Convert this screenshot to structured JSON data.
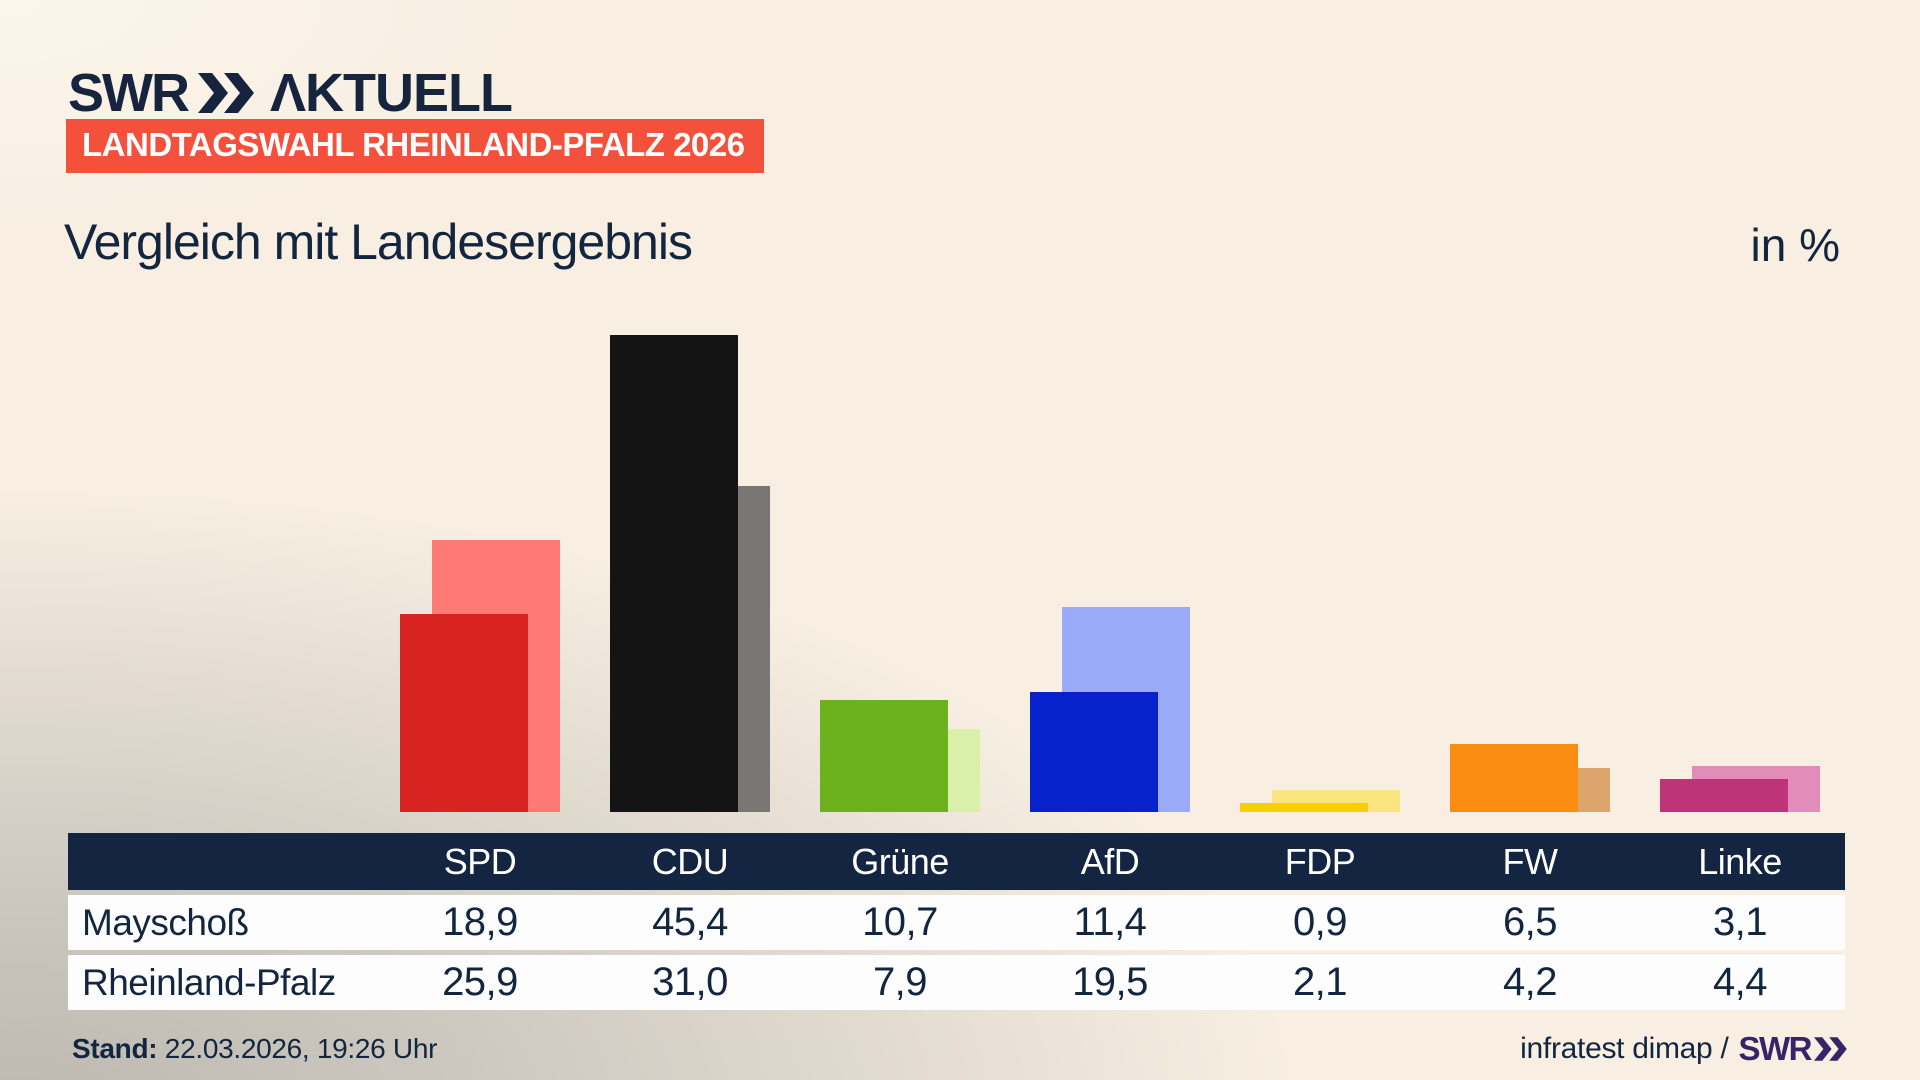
{
  "header": {
    "logo_swr": "SWR",
    "logo_aktuell": "ΛKTUELL",
    "badge": "LANDTAGSWAHL RHEINLAND-PFALZ 2026",
    "title": "Vergleich mit Landesergebnis",
    "unit_label": "in %"
  },
  "chart_data": {
    "type": "bar",
    "title": "Vergleich mit Landesergebnis",
    "unit": "in %",
    "categories": [
      "SPD",
      "CDU",
      "Grüne",
      "AfD",
      "FDP",
      "FW",
      "Linke"
    ],
    "series": [
      {
        "name": "Mayschoß",
        "values": [
          18.9,
          45.4,
          10.7,
          11.4,
          0.9,
          6.5,
          3.1
        ]
      },
      {
        "name": "Rheinland-Pfalz",
        "values": [
          25.9,
          31.0,
          7.9,
          19.5,
          2.1,
          4.2,
          4.4
        ]
      }
    ],
    "colors": {
      "front": [
        "#d82321",
        "#141414",
        "#6db21e",
        "#0721cd",
        "#f6d003",
        "#fb8c12",
        "#bf3378"
      ],
      "back": [
        "#ff7a75",
        "#7a7674",
        "#d9f0ab",
        "#9aa9f8",
        "#fbe57e",
        "#dca56c",
        "#e28cba"
      ]
    },
    "ylim": [
      0,
      50
    ],
    "grid": false,
    "legend_position": "table-rows"
  },
  "table": {
    "columns": [
      "SPD",
      "CDU",
      "Grüne",
      "AfD",
      "FDP",
      "FW",
      "Linke"
    ],
    "rows": [
      {
        "label": "Mayschoß",
        "values": [
          "18,9",
          "45,4",
          "10,7",
          "11,4",
          "0,9",
          "6,5",
          "3,1"
        ]
      },
      {
        "label": "Rheinland-Pfalz",
        "values": [
          "25,9",
          "31,0",
          "7,9",
          "19,5",
          "2,1",
          "4,2",
          "4,4"
        ]
      }
    ]
  },
  "footer": {
    "stand_label": "Stand:",
    "stand_value": " 22.03.2026, 19:26 Uhr",
    "source_text": "infratest dimap /",
    "source_logo": "SWR"
  },
  "ui_colors": {
    "badge_bg": "#f4513c",
    "table_header_bg": "#132540",
    "text_navy": "#12263f",
    "footer_logo_purple": "#352466"
  }
}
